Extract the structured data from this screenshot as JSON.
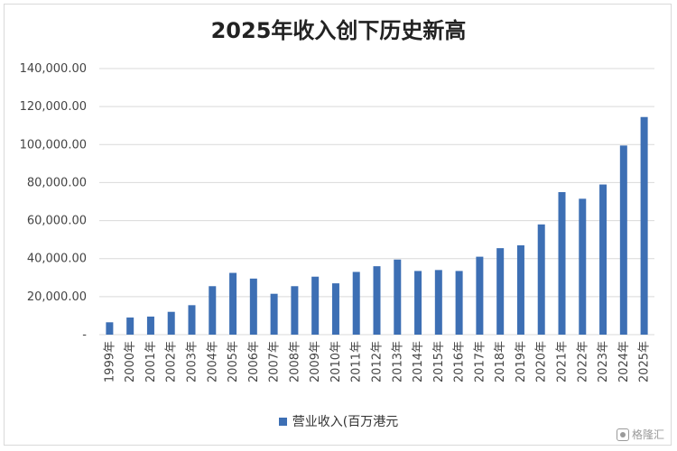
{
  "chart_data": {
    "type": "bar",
    "title": "2025年收入创下历史新高",
    "categories": [
      "1999年",
      "2000年",
      "2001年",
      "2002年",
      "2003年",
      "2004年",
      "2005年",
      "2006年",
      "2007年",
      "2008年",
      "2009年",
      "2010年",
      "2011年",
      "2012年",
      "2013年",
      "2014年",
      "2015年",
      "2016年",
      "2017年",
      "2018年",
      "2019年",
      "2020年",
      "2021年",
      "2022年",
      "2023年",
      "2024年",
      "2025年"
    ],
    "series": [
      {
        "name": "营业收入(百万港元",
        "values": [
          6500,
          9000,
          9500,
          12000,
          15500,
          25500,
          32500,
          29500,
          21500,
          25500,
          30500,
          27000,
          33000,
          36000,
          39500,
          33500,
          34000,
          33500,
          41000,
          45500,
          47000,
          58000,
          75000,
          71500,
          79000,
          99500,
          114500
        ]
      }
    ],
    "yticks": [
      "-",
      "20,000.00",
      "40,000.00",
      "60,000.00",
      "80,000.00",
      "100,000.00",
      "120,000.00",
      "140,000.00"
    ],
    "ylim": [
      0,
      140000
    ],
    "grid": true,
    "legend_position": "bottom",
    "bar_color": "#3d6fb4",
    "grid_color": "#d9d9d9"
  },
  "watermark": {
    "text": "格隆汇",
    "icon": "gelonghui-logo-icon"
  }
}
